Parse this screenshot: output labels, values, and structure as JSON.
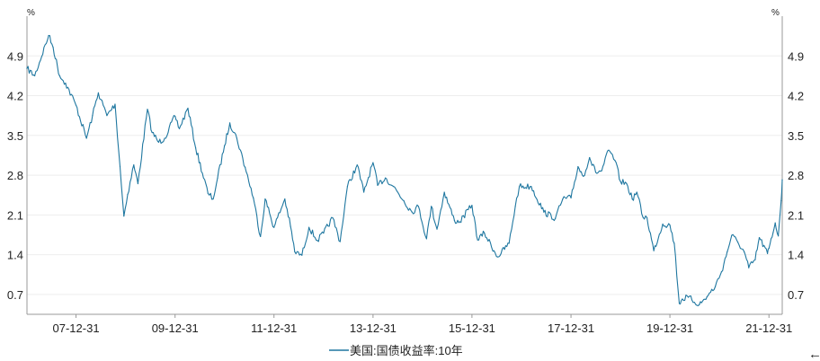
{
  "chart_data": {
    "type": "line",
    "title": "",
    "xlabel": "",
    "ylabel": "",
    "y_unit_left": "%",
    "y_unit_right": "%",
    "ylim": [
      0.35,
      5.6
    ],
    "y_ticks": [
      "0.7",
      "1.4",
      "2.1",
      "2.8",
      "3.5",
      "4.2",
      "4.9"
    ],
    "x_ticks": [
      "07-12-31",
      "09-12-31",
      "11-12-31",
      "13-12-31",
      "15-12-31",
      "17-12-31",
      "19-12-31",
      "21-12-31"
    ],
    "x_range": [
      "2007-01-03",
      "2022-04-08"
    ],
    "grid": true,
    "legend_position": "bottom-center",
    "series": [
      {
        "name": "美国:国债收益率:10年",
        "color": "#1f77a0",
        "x": [
          "2007-01-03",
          "2007-03-01",
          "2007-06-12",
          "2007-07-15",
          "2007-09-01",
          "2007-10-15",
          "2007-12-31",
          "2008-03-17",
          "2008-05-01",
          "2008-06-13",
          "2008-08-15",
          "2008-10-14",
          "2008-11-20",
          "2008-12-18",
          "2009-01-15",
          "2009-03-01",
          "2009-04-01",
          "2009-06-10",
          "2009-07-15",
          "2009-09-01",
          "2009-10-15",
          "2009-12-31",
          "2010-02-01",
          "2010-04-05",
          "2010-06-01",
          "2010-08-31",
          "2010-10-08",
          "2010-11-10",
          "2010-12-31",
          "2011-02-08",
          "2011-04-01",
          "2011-06-01",
          "2011-08-01",
          "2011-09-22",
          "2011-10-27",
          "2011-12-31",
          "2012-03-20",
          "2012-05-01",
          "2012-06-01",
          "2012-07-24",
          "2012-09-14",
          "2012-11-15",
          "2012-12-31",
          "2013-03-08",
          "2013-05-02",
          "2013-06-25",
          "2013-09-05",
          "2013-10-24",
          "2013-12-31",
          "2014-02-03",
          "2014-04-01",
          "2014-06-01",
          "2014-08-15",
          "2014-10-15",
          "2014-12-01",
          "2015-01-30",
          "2015-03-06",
          "2015-04-17",
          "2015-06-10",
          "2015-08-24",
          "2015-10-02",
          "2015-12-31",
          "2016-02-11",
          "2016-04-01",
          "2016-07-08",
          "2016-09-30",
          "2016-11-15",
          "2016-12-15",
          "2017-03-13",
          "2017-06-14",
          "2017-09-07",
          "2017-10-31",
          "2017-12-31",
          "2018-02-21",
          "2018-04-01",
          "2018-05-17",
          "2018-07-01",
          "2018-08-15",
          "2018-10-05",
          "2018-11-20",
          "2018-12-31",
          "2019-02-15",
          "2019-03-28",
          "2019-05-01",
          "2019-06-15",
          "2019-07-15",
          "2019-09-03",
          "2019-11-08",
          "2019-12-31",
          "2020-02-01",
          "2020-03-09",
          "2020-04-01",
          "2020-05-15",
          "2020-08-04",
          "2020-09-30",
          "2020-11-30",
          "2021-01-15",
          "2021-02-26",
          "2021-03-31",
          "2021-05-15",
          "2021-07-01",
          "2021-08-04",
          "2021-09-20",
          "2021-10-21",
          "2021-12-20",
          "2021-12-31",
          "2022-01-31",
          "2022-02-15",
          "2022-03-10",
          "2022-03-31",
          "2022-04-08"
        ],
        "values": [
          4.68,
          4.55,
          5.26,
          5.05,
          4.55,
          4.42,
          4.03,
          3.45,
          3.85,
          4.25,
          3.85,
          4.05,
          2.95,
          2.08,
          2.46,
          2.98,
          2.65,
          3.96,
          3.55,
          3.38,
          3.45,
          3.84,
          3.62,
          3.98,
          3.28,
          2.48,
          2.38,
          2.75,
          3.32,
          3.72,
          3.45,
          2.94,
          2.4,
          1.72,
          2.38,
          1.88,
          2.38,
          1.9,
          1.45,
          1.39,
          1.88,
          1.65,
          1.78,
          2.05,
          1.63,
          2.6,
          2.98,
          2.5,
          3.02,
          2.62,
          2.75,
          2.6,
          2.35,
          2.15,
          2.25,
          1.68,
          2.25,
          1.85,
          2.5,
          2.0,
          1.98,
          2.27,
          1.66,
          1.78,
          1.36,
          1.6,
          2.25,
          2.6,
          2.6,
          2.15,
          2.04,
          2.38,
          2.4,
          2.95,
          2.78,
          3.11,
          2.85,
          2.88,
          3.24,
          3.06,
          2.69,
          2.65,
          2.38,
          2.5,
          2.06,
          2.05,
          1.47,
          1.94,
          1.92,
          1.6,
          0.54,
          0.62,
          0.65,
          0.52,
          0.66,
          0.84,
          1.1,
          1.45,
          1.74,
          1.62,
          1.45,
          1.17,
          1.31,
          1.7,
          1.42,
          1.51,
          1.79,
          1.96,
          1.73,
          2.35,
          2.72
        ]
      }
    ],
    "nav_icon": "back-arrow-icon"
  }
}
